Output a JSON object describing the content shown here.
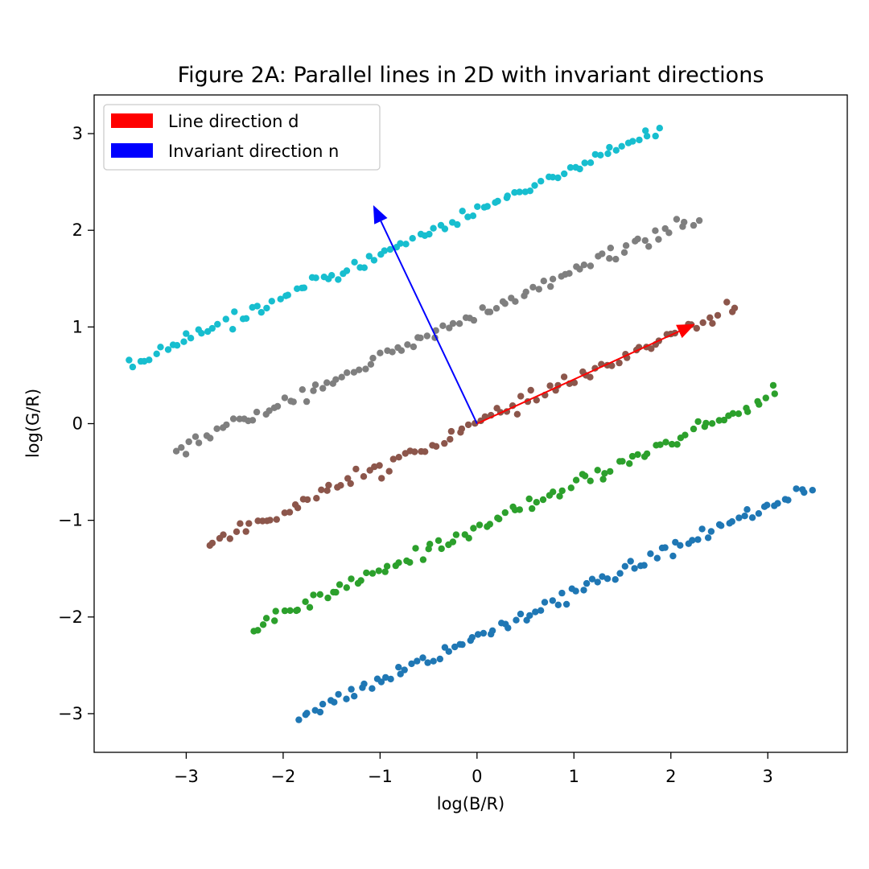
{
  "chart_data": {
    "type": "scatter",
    "title": "Figure 2A: Parallel lines in 2D with invariant directions",
    "xlabel": "log(B/R)",
    "ylabel": "log(G/R)",
    "xlim": [
      -3.95,
      3.82
    ],
    "ylim": [
      -3.4,
      3.4
    ],
    "xticks": [
      -3,
      -2,
      -1,
      0,
      1,
      2,
      3
    ],
    "yticks": [
      -3,
      -2,
      -1,
      0,
      1,
      2,
      3
    ],
    "tick_labels": {
      "x": [
        "−3",
        "−2",
        "−1",
        "0",
        "1",
        "2",
        "3"
      ],
      "y": [
        "−3",
        "−2",
        "−1",
        "0",
        "1",
        "2",
        "3"
      ]
    },
    "grid": false,
    "slope": 0.45,
    "series": [
      {
        "color": "#1f77b4",
        "intercept": -2.2,
        "x_range": [
          -1.87,
          3.47
        ],
        "count": 100
      },
      {
        "color": "#2ca02c",
        "intercept": -1.08,
        "x_range": [
          -2.35,
          3.12
        ],
        "count": 100
      },
      {
        "color": "#8c564b",
        "intercept": 0.0,
        "x_range": [
          -2.8,
          2.7
        ],
        "count": 100
      },
      {
        "color": "#7f7f7f",
        "intercept": 1.12,
        "x_range": [
          -3.15,
          2.3
        ],
        "count": 100
      },
      {
        "color": "#17becf",
        "intercept": 2.2,
        "x_range": [
          -3.62,
          1.92
        ],
        "count": 100
      }
    ],
    "arrows": [
      {
        "name": "Line direction d",
        "color": "#ff0000",
        "from": [
          0,
          0
        ],
        "to": [
          2.25,
          1.03
        ]
      },
      {
        "name": "Invariant direction n",
        "color": "#0000ff",
        "from": [
          0,
          0
        ],
        "to": [
          -1.07,
          2.26
        ]
      }
    ],
    "legend": {
      "position": "upper-left",
      "entries": [
        {
          "label": "Line direction d",
          "color": "#ff0000"
        },
        {
          "label": "Invariant direction n",
          "color": "#0000ff"
        }
      ]
    }
  }
}
